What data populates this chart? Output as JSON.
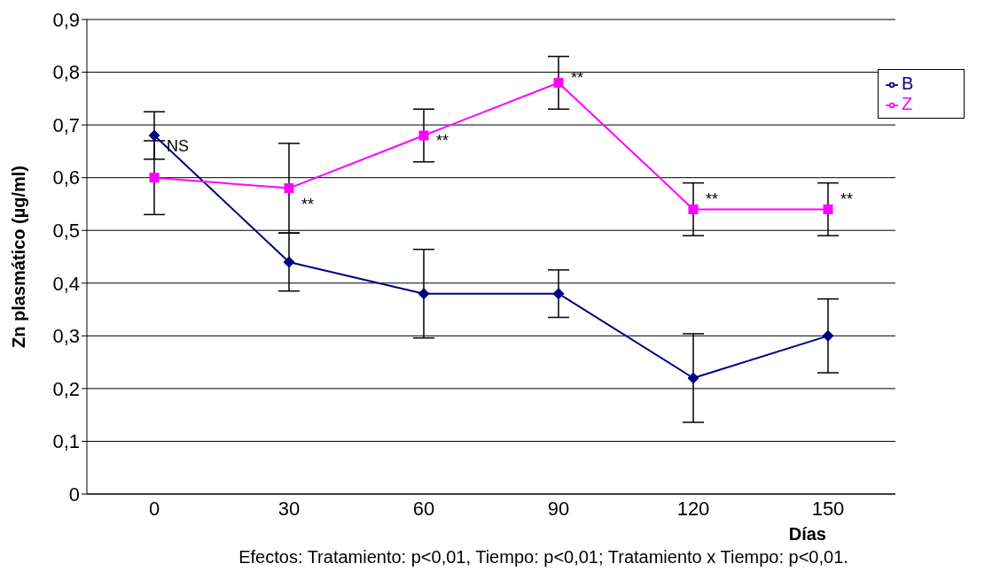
{
  "chart_data": {
    "type": "line",
    "xlabel": "Días",
    "ylabel": "Zn plasmático (µg/ml)",
    "categories": [
      "0",
      "30",
      "60",
      "90",
      "120",
      "150"
    ],
    "series": [
      {
        "name": "B",
        "color": "#000080",
        "marker": "diamond",
        "values": [
          0.68,
          0.44,
          0.38,
          0.38,
          0.22,
          0.3
        ],
        "errors": [
          0.045,
          0.055,
          0.084,
          0.045,
          0.084,
          0.07
        ]
      },
      {
        "name": "Z",
        "color": "#ff00ff",
        "marker": "square",
        "values": [
          0.6,
          0.58,
          0.68,
          0.78,
          0.54,
          0.54
        ],
        "errors": [
          0.07,
          0.085,
          0.05,
          0.05,
          0.05,
          0.05
        ]
      }
    ],
    "ylim": [
      0,
      0.9
    ],
    "yticks": [
      {
        "value": 0,
        "label": "0"
      },
      {
        "value": 0.1,
        "label": "0,1"
      },
      {
        "value": 0.2,
        "label": "0,2"
      },
      {
        "value": 0.3,
        "label": "0,3"
      },
      {
        "value": 0.4,
        "label": "0,4"
      },
      {
        "value": 0.5,
        "label": "0,5"
      },
      {
        "value": 0.6,
        "label": "0,6"
      },
      {
        "value": 0.7,
        "label": "0,7"
      },
      {
        "value": 0.8,
        "label": "0,8"
      },
      {
        "value": 0.9,
        "label": "0,9"
      }
    ],
    "grid": "y",
    "legend": "top right",
    "line_style": "solid",
    "annotations": [
      {
        "text": "NS",
        "x": "0",
        "y": 0.66
      },
      {
        "text": "**",
        "x": "30",
        "y": 0.55
      },
      {
        "text": "**",
        "x": "60",
        "y": 0.67
      },
      {
        "text": "**",
        "x": "90",
        "y": 0.79
      },
      {
        "text": "**",
        "x": "120",
        "y": 0.56
      },
      {
        "text": "**",
        "x": "150",
        "y": 0.56
      },
      "Efectos: Tratamiento: p<0,01, Tiempo: p<0,01; Tratamiento x Tiempo: p<0,01."
    ]
  }
}
